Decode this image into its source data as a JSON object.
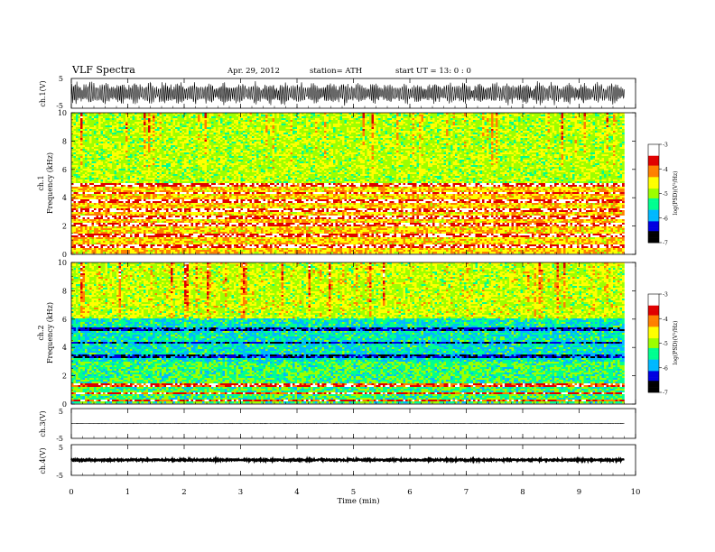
{
  "header": {
    "title": "VLF  Spectra",
    "date": "Apr. 29, 2012",
    "station": "station= ATH",
    "start": "start  UT  =    13: 0  : 0"
  },
  "chart_data": [
    {
      "type": "line",
      "panel": "ch1-waveform",
      "ylabel": "ch.1(V)",
      "ylim": [
        -5,
        5
      ],
      "yticks": [
        "5",
        "-5"
      ],
      "xlim": [
        0,
        10
      ],
      "data_end_min": 9.8,
      "waveform": "oscillating between about -4 and +4 V throughout"
    },
    {
      "type": "heatmap",
      "panel": "ch1-spectrogram",
      "ylabel": "ch.1\nFrequency  (kHz)",
      "ylim": [
        0,
        10
      ],
      "yticks": [
        "0",
        "2",
        "4",
        "6",
        "8",
        "10"
      ],
      "xlim": [
        0,
        10
      ],
      "colorbar": {
        "label": "log(PSD)(V²/Hz)",
        "range": [
          -7,
          -3
        ],
        "ticks": [
          "-3",
          "-4",
          "-5",
          "-6",
          "-7"
        ]
      },
      "strong_bands_khz": [
        0.5,
        1.3,
        2.1,
        2.6,
        3.1,
        3.7,
        4.3,
        4.9
      ],
      "background_log_psd_below_5khz": -4.4,
      "background_log_psd_above_5khz": -4.9
    },
    {
      "type": "heatmap",
      "panel": "ch2-spectrogram",
      "ylabel": "ch.2\nFrequency  (kHz)",
      "ylim": [
        0,
        10
      ],
      "yticks": [
        "0",
        "2",
        "4",
        "6",
        "8",
        "10"
      ],
      "xlim": [
        0,
        10
      ],
      "colorbar": {
        "label": "log(PSD)(V²/Hz)",
        "range": [
          -7,
          -3
        ],
        "ticks": [
          "-3",
          "-4",
          "-5",
          "-6",
          "-7"
        ]
      },
      "strong_bands_khz": [
        0.2,
        0.7,
        1.3
      ],
      "weak_bands_khz": [
        3.3,
        4.3,
        5.3
      ],
      "background_log_psd": -5.3
    },
    {
      "type": "line",
      "panel": "ch3-waveform",
      "ylabel": "ch.3(V)",
      "ylim": [
        -5,
        5
      ],
      "yticks": [
        "5",
        "-5"
      ],
      "xlim": [
        0,
        10
      ],
      "level_v": 0
    },
    {
      "type": "line",
      "panel": "ch4-waveform",
      "ylabel": "ch.4(V)",
      "ylim": [
        -5,
        5
      ],
      "yticks": [
        "5",
        "-5"
      ],
      "xlim": [
        0,
        10
      ],
      "level_v": 0
    }
  ],
  "xaxis": {
    "label": "Time  (min)",
    "ticks": [
      "0",
      "1",
      "2",
      "3",
      "4",
      "5",
      "6",
      "7",
      "8",
      "9",
      "10"
    ]
  },
  "colors": {
    "colormap": [
      "#000000",
      "#0000e0",
      "#00b8ff",
      "#00ff90",
      "#9cff00",
      "#ffff00",
      "#ff8000",
      "#e00000",
      "#ffffff"
    ]
  }
}
